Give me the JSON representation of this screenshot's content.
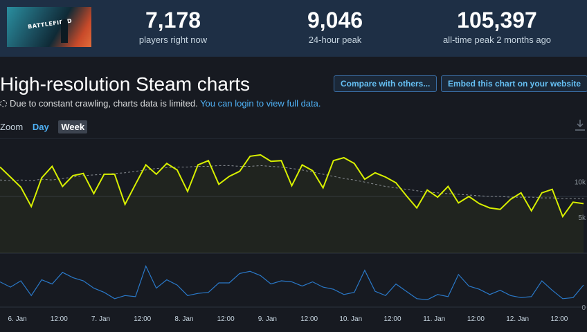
{
  "header": {
    "thumbnail_text": "BATTLEFIELD",
    "stats": [
      {
        "value": "7,178",
        "label": "players right now"
      },
      {
        "value": "9,046",
        "label": "24-hour peak"
      },
      {
        "value": "105,397",
        "label": "all-time peak 2 months ago"
      }
    ]
  },
  "section": {
    "title": "High-resolution Steam charts",
    "compare_button": "Compare with others...",
    "embed_button": "Embed this chart on your website",
    "notice_text": "Due to constant crawling, charts data is limited.",
    "notice_link": "You can login to view full data.",
    "zoom_label": "Zoom",
    "zoom_day": "Day",
    "zoom_week": "Week"
  },
  "colors": {
    "players_line": "#d8f000",
    "avg_line": "#8a8f95",
    "twitch_line": "#2a79c9",
    "grid": "#2e3440"
  },
  "chart_data": {
    "type": "line",
    "x_tick_labels": [
      "6. Jan",
      "12:00",
      "7. Jan",
      "12:00",
      "8. Jan",
      "12:00",
      "9. Jan",
      "12:00",
      "10. Jan",
      "12:00",
      "11. Jan",
      "12:00",
      "12. Jan",
      "12:00"
    ],
    "y_tick_labels": [
      "10k",
      "5k",
      "0"
    ],
    "ylim": [
      0,
      16000
    ],
    "x_hours": [
      0,
      3,
      6,
      9,
      12,
      15,
      18,
      21,
      24,
      27,
      30,
      33,
      36,
      39,
      42,
      45,
      48,
      51,
      54,
      57,
      60,
      63,
      66,
      69,
      72,
      75,
      78,
      81,
      84,
      87,
      90,
      93,
      96,
      99,
      102,
      105,
      108,
      111,
      114,
      117,
      120,
      123,
      126,
      129,
      132,
      135,
      138,
      141,
      144,
      147,
      150,
      153,
      156,
      159,
      162,
      165,
      168
    ],
    "series": [
      {
        "values": [
          12000,
          10600,
          9200,
          6500,
          10500,
          12100,
          9300,
          10800,
          11100,
          8300,
          11000,
          11000,
          6800,
          9600,
          12300,
          11000,
          12500,
          11600,
          8600,
          12300,
          12900,
          9600,
          10700,
          11400,
          13500,
          13700,
          12800,
          12900,
          9400,
          12300,
          11500,
          9100,
          12900,
          13300,
          12500,
          10300,
          11200,
          10600,
          9800,
          8000,
          6300,
          8800,
          7800,
          9300,
          7000,
          7900,
          6900,
          6300,
          6100,
          7500,
          8400,
          5900,
          8400,
          8900,
          5100,
          7100,
          6900
        ]
      },
      {
        "values": [
          10200,
          10100,
          10200,
          10100,
          10300,
          10200,
          10400,
          10600,
          10800,
          10900,
          11000,
          11100,
          11200,
          11400,
          11600,
          11800,
          11900,
          12000,
          12000,
          12100,
          12100,
          12200,
          12200,
          12100,
          12100,
          12200,
          12100,
          12000,
          11800,
          11600,
          11300,
          11000,
          10700,
          10400,
          10200,
          9900,
          9600,
          9300,
          9100,
          8900,
          8700,
          8500,
          8400,
          8300,
          8200,
          8100,
          8000,
          7900,
          7900,
          7800,
          7800,
          7800,
          7700,
          7700,
          7600,
          7600,
          7600
        ]
      },
      {
        "values": [
          2400,
          1900,
          2500,
          1100,
          2600,
          2200,
          3300,
          2800,
          2500,
          1800,
          1400,
          800,
          1100,
          1000,
          3900,
          1800,
          2600,
          2100,
          1100,
          1300,
          1400,
          2300,
          2300,
          3200,
          3400,
          3000,
          2200,
          2500,
          2400,
          2000,
          2400,
          1900,
          1700,
          1200,
          1400,
          3500,
          1500,
          1100,
          2200,
          1500,
          800,
          700,
          1200,
          1000,
          3100,
          2000,
          1700,
          1200,
          1600,
          1100,
          900,
          1000,
          2500,
          1600,
          800,
          900,
          2100
        ]
      }
    ]
  }
}
